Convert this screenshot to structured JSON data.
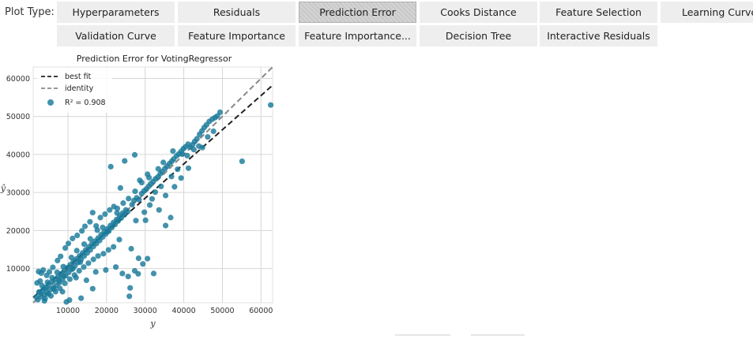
{
  "toolbar": {
    "label": "Plot Type:",
    "buttons": [
      {
        "label": "Hyperparameters",
        "active": false
      },
      {
        "label": "Residuals",
        "active": false
      },
      {
        "label": "Prediction Error",
        "active": true
      },
      {
        "label": "Cooks Distance",
        "active": false
      },
      {
        "label": "Feature Selection",
        "active": false
      },
      {
        "label": "Learning Curve",
        "active": false
      },
      {
        "label": "Validation Curve",
        "active": false
      },
      {
        "label": "Feature Importance",
        "active": false
      },
      {
        "label": "Feature Importance...",
        "active": false
      },
      {
        "label": "Decision Tree",
        "active": false
      },
      {
        "label": "Interactive Residuals",
        "active": false
      }
    ]
  },
  "chart_data": {
    "type": "scatter",
    "title": "Prediction Error for VotingRegressor",
    "xlabel": "y",
    "ylabel": "ŷ",
    "xlim": [
      1000,
      63000
    ],
    "ylim": [
      1000,
      63000
    ],
    "x_ticks": [
      10000,
      20000,
      30000,
      40000,
      50000,
      60000
    ],
    "y_ticks": [
      10000,
      20000,
      30000,
      40000,
      50000,
      60000
    ],
    "grid": true,
    "legend": {
      "placement": "top-left",
      "entries": [
        {
          "label": "best fit",
          "style": "dashed",
          "color": "#222222"
        },
        {
          "label": "identity",
          "style": "dashed",
          "color": "#888888"
        },
        {
          "label": "R² = 0.908",
          "style": "marker",
          "color": "#1a7a9a"
        }
      ]
    },
    "best_fit": {
      "slope": 0.9,
      "intercept": 1500
    },
    "identity": {
      "slope": 1,
      "intercept": 0
    },
    "r2": 0.908,
    "points": [
      [
        1800,
        2500
      ],
      [
        2200,
        1800
      ],
      [
        2600,
        3800
      ],
      [
        3000,
        2600
      ],
      [
        3400,
        4200
      ],
      [
        3800,
        3100
      ],
      [
        4200,
        5000
      ],
      [
        4600,
        3600
      ],
      [
        5000,
        5800
      ],
      [
        5400,
        4400
      ],
      [
        5800,
        6500
      ],
      [
        6200,
        5000
      ],
      [
        6600,
        7100
      ],
      [
        7000,
        5600
      ],
      [
        7400,
        7800
      ],
      [
        7800,
        6300
      ],
      [
        8200,
        8600
      ],
      [
        8600,
        7200
      ],
      [
        9000,
        9400
      ],
      [
        9400,
        8100
      ],
      [
        9800,
        10200
      ],
      [
        10200,
        9000
      ],
      [
        10600,
        11000
      ],
      [
        11000,
        9800
      ],
      [
        11400,
        11800
      ],
      [
        11800,
        10700
      ],
      [
        12200,
        12500
      ],
      [
        12600,
        11600
      ],
      [
        13000,
        13300
      ],
      [
        13400,
        12400
      ],
      [
        13800,
        14100
      ],
      [
        14200,
        13300
      ],
      [
        14600,
        14900
      ],
      [
        15000,
        14100
      ],
      [
        15400,
        15700
      ],
      [
        15800,
        14900
      ],
      [
        16200,
        16500
      ],
      [
        16600,
        15800
      ],
      [
        17000,
        17200
      ],
      [
        17400,
        16600
      ],
      [
        17800,
        18000
      ],
      [
        18200,
        17400
      ],
      [
        18600,
        18900
      ],
      [
        19000,
        18300
      ],
      [
        19400,
        19600
      ],
      [
        19800,
        19100
      ],
      [
        20200,
        20400
      ],
      [
        20600,
        19900
      ],
      [
        21000,
        21300
      ],
      [
        21400,
        20800
      ],
      [
        21800,
        22100
      ],
      [
        22200,
        21600
      ],
      [
        22600,
        22900
      ],
      [
        23000,
        22500
      ],
      [
        23400,
        23800
      ],
      [
        23800,
        23300
      ],
      [
        24200,
        24600
      ],
      [
        24600,
        24100
      ],
      [
        25000,
        25400
      ],
      [
        25500,
        25000
      ],
      [
        2400,
        9200
      ],
      [
        3100,
        8800
      ],
      [
        3600,
        9600
      ],
      [
        2000,
        6200
      ],
      [
        2800,
        6700
      ],
      [
        4500,
        8200
      ],
      [
        5200,
        9100
      ],
      [
        6100,
        10300
      ],
      [
        7300,
        12100
      ],
      [
        8100,
        13200
      ],
      [
        9300,
        15400
      ],
      [
        10100,
        16600
      ],
      [
        11200,
        17900
      ],
      [
        12400,
        18700
      ],
      [
        13600,
        19900
      ],
      [
        14400,
        21100
      ],
      [
        15700,
        22300
      ],
      [
        16400,
        24700
      ],
      [
        17300,
        21200
      ],
      [
        18400,
        23400
      ],
      [
        19600,
        24300
      ],
      [
        20800,
        25400
      ],
      [
        21900,
        26300
      ],
      [
        22700,
        24600
      ],
      [
        3900,
        1500
      ],
      [
        5600,
        2800
      ],
      [
        6800,
        3900
      ],
      [
        7900,
        4800
      ],
      [
        9200,
        6100
      ],
      [
        10500,
        7200
      ],
      [
        11700,
        8300
      ],
      [
        12900,
        9400
      ],
      [
        14100,
        10400
      ],
      [
        15300,
        11400
      ],
      [
        16600,
        12400
      ],
      [
        17800,
        13300
      ],
      [
        19200,
        13900
      ],
      [
        20500,
        14900
      ],
      [
        21800,
        15700
      ],
      [
        23300,
        17600
      ],
      [
        8600,
        3900
      ],
      [
        12100,
        7600
      ],
      [
        14800,
        6900
      ],
      [
        17200,
        9100
      ],
      [
        19800,
        9600
      ],
      [
        22400,
        10400
      ],
      [
        24100,
        8700
      ],
      [
        25600,
        7900
      ],
      [
        27300,
        9400
      ],
      [
        28200,
        8600
      ],
      [
        29400,
        11200
      ],
      [
        30600,
        12600
      ],
      [
        32200,
        8700
      ],
      [
        26100,
        4900
      ],
      [
        28300,
        12700
      ],
      [
        25900,
        2700
      ],
      [
        16400,
        4700
      ],
      [
        13400,
        2200
      ],
      [
        10400,
        1700
      ],
      [
        9600,
        1200
      ],
      [
        26600,
        26800
      ],
      [
        27100,
        27900
      ],
      [
        27800,
        28600
      ],
      [
        28400,
        28100
      ],
      [
        29100,
        29700
      ],
      [
        29700,
        30400
      ],
      [
        30300,
        30900
      ],
      [
        30900,
        31600
      ],
      [
        31400,
        32300
      ],
      [
        32100,
        32900
      ],
      [
        32700,
        33600
      ],
      [
        33300,
        34100
      ],
      [
        33900,
        34900
      ],
      [
        34400,
        35500
      ],
      [
        35100,
        36300
      ],
      [
        35700,
        36900
      ],
      [
        36300,
        37600
      ],
      [
        36900,
        38200
      ],
      [
        37400,
        38800
      ],
      [
        38100,
        39600
      ],
      [
        38700,
        40100
      ],
      [
        39300,
        40800
      ],
      [
        39900,
        41500
      ],
      [
        40400,
        42000
      ],
      [
        41100,
        42700
      ],
      [
        41700,
        41900
      ],
      [
        42300,
        42600
      ],
      [
        42800,
        43400
      ],
      [
        43400,
        44100
      ],
      [
        44100,
        45300
      ],
      [
        44700,
        46200
      ],
      [
        45300,
        47100
      ],
      [
        45900,
        47800
      ],
      [
        46600,
        48700
      ],
      [
        47400,
        49300
      ],
      [
        48100,
        49700
      ],
      [
        48700,
        50100
      ],
      [
        49400,
        51100
      ],
      [
        27600,
        22600
      ],
      [
        29800,
        24800
      ],
      [
        31200,
        26700
      ],
      [
        33600,
        25400
      ],
      [
        35300,
        29200
      ],
      [
        37600,
        31500
      ],
      [
        39300,
        33800
      ],
      [
        41200,
        36400
      ],
      [
        36600,
        23400
      ],
      [
        35300,
        21300
      ],
      [
        28600,
        33200
      ],
      [
        24700,
        38300
      ],
      [
        27300,
        39900
      ],
      [
        30600,
        34800
      ],
      [
        33400,
        36200
      ],
      [
        21100,
        36800
      ],
      [
        23600,
        31200
      ],
      [
        55100,
        38200
      ],
      [
        62500,
        53000
      ],
      [
        30100,
        22700
      ],
      [
        26400,
        15200
      ],
      [
        20300,
        19700
      ],
      [
        19000,
        20800
      ],
      [
        17600,
        20100
      ],
      [
        15800,
        17800
      ],
      [
        14200,
        16400
      ],
      [
        12300,
        14700
      ],
      [
        10900,
        12900
      ],
      [
        8800,
        10500
      ],
      [
        7200,
        9000
      ],
      [
        5900,
        7600
      ],
      [
        4700,
        6400
      ],
      [
        3900,
        4800
      ],
      [
        2500,
        3800
      ],
      [
        3300,
        5500
      ],
      [
        4100,
        2100
      ],
      [
        5000,
        3300
      ],
      [
        6400,
        4600
      ],
      [
        7700,
        6800
      ],
      [
        8900,
        8000
      ],
      [
        11300,
        10000
      ],
      [
        13200,
        11700
      ],
      [
        22800,
        25800
      ],
      [
        24300,
        27200
      ],
      [
        25700,
        28400
      ],
      [
        27400,
        30300
      ],
      [
        29100,
        32600
      ],
      [
        31000,
        33900
      ],
      [
        34700,
        37900
      ],
      [
        37200,
        40900
      ],
      [
        39600,
        40100
      ],
      [
        40900,
        39700
      ],
      [
        42600,
        41300
      ],
      [
        43900,
        42200
      ],
      [
        44800,
        41800
      ],
      [
        46200,
        44600
      ],
      [
        47700,
        46100
      ],
      [
        36800,
        34200
      ],
      [
        38400,
        36100
      ],
      [
        34100,
        31600
      ],
      [
        32600,
        30100
      ],
      [
        31800,
        28300
      ]
    ]
  }
}
